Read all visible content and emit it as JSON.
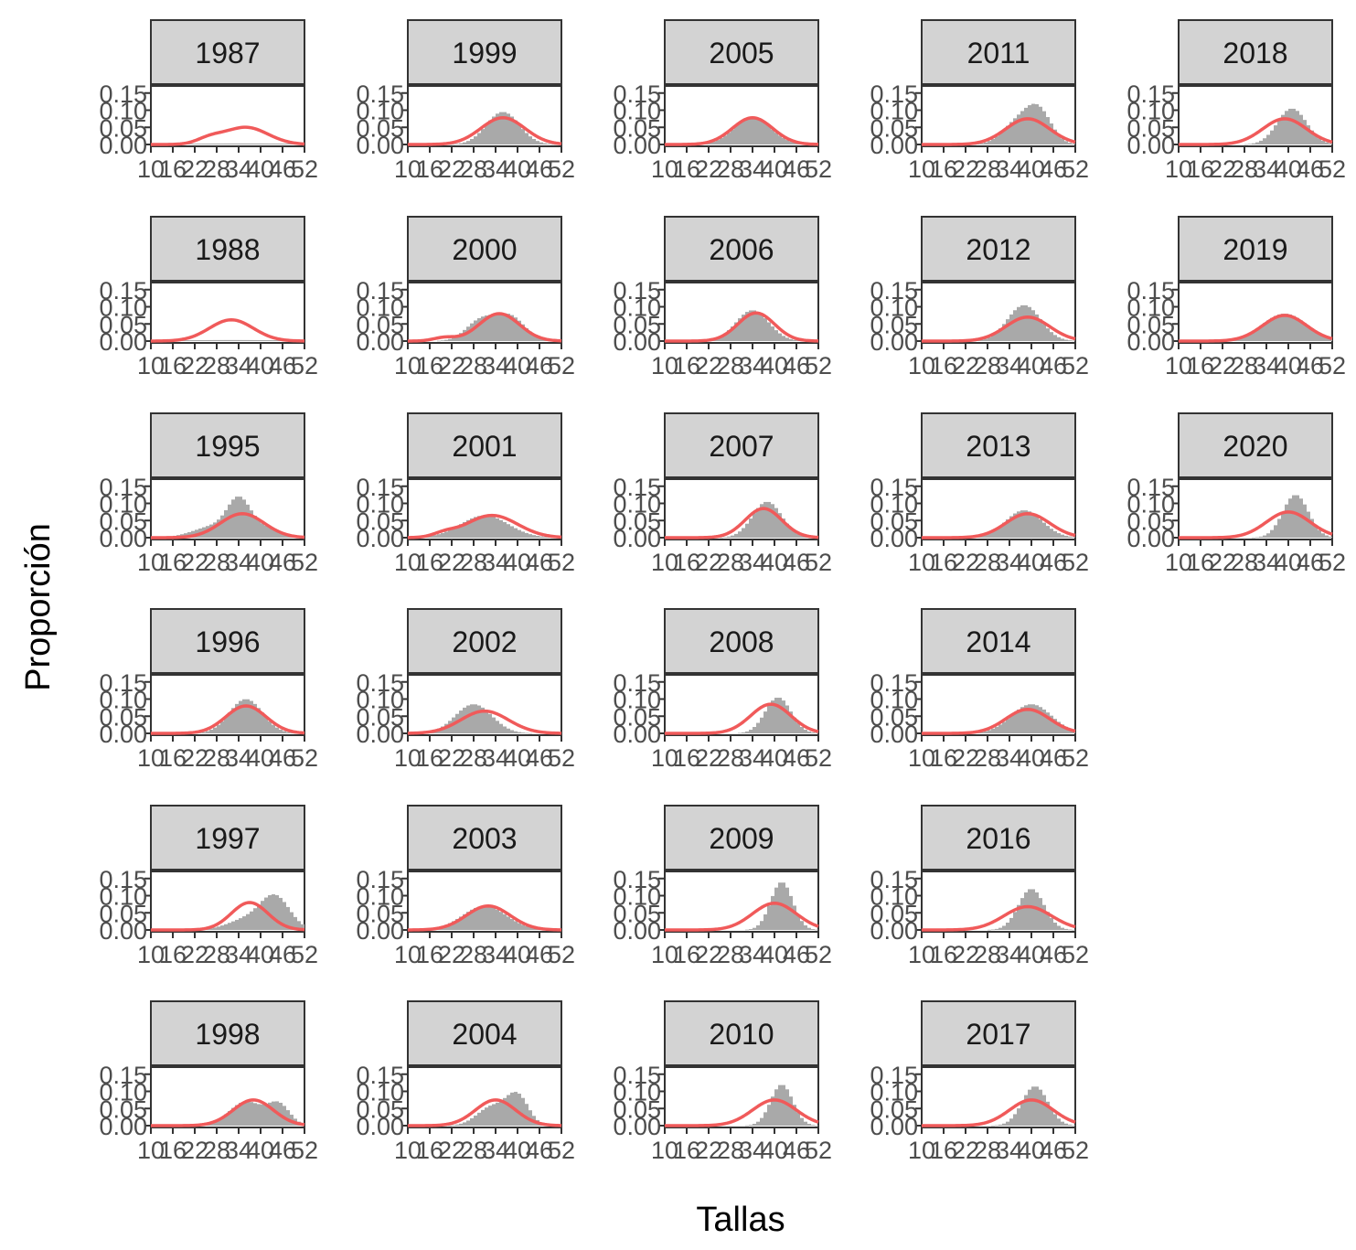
{
  "chart_data": {
    "type": "bar",
    "layout": "facet_wrap",
    "xlabel": "Tallas",
    "ylabel": "Proporción",
    "xlim": [
      10,
      52
    ],
    "ylim": [
      0,
      0.16
    ],
    "x_ticks": [
      10,
      16,
      22,
      28,
      34,
      40,
      46,
      52
    ],
    "x_tick_labels": [
      "10",
      "16",
      "22",
      "28",
      "34",
      "40",
      "46",
      "52"
    ],
    "y_ticks": [
      0,
      0.05,
      0.1,
      0.15
    ],
    "y_tick_labels": [
      "0.00",
      "0.05",
      "0.10",
      "0.15"
    ],
    "bin_width": 1,
    "observed_color": "#a9a9a9",
    "predicted_color": "#f05a5a",
    "strip_color": "#d3d3d3",
    "panels": [
      {
        "label": "1987",
        "obs_peaks": [
          [
            36,
            0.003,
            20
          ]
        ],
        "pred_peaks": [
          [
            36,
            0.05,
            6.0
          ],
          [
            26,
            0.015,
            3.5
          ]
        ]
      },
      {
        "label": "1988",
        "obs_peaks": [
          [
            32,
            0.003,
            20
          ]
        ],
        "pred_peaks": [
          [
            32,
            0.062,
            6.0
          ]
        ]
      },
      {
        "label": "1995",
        "obs_peaks": [
          [
            34,
            0.085,
            3.0
          ],
          [
            28,
            0.035,
            6.0
          ],
          [
            40,
            0.03,
            5.0
          ]
        ],
        "pred_peaks": [
          [
            35,
            0.07,
            6.0
          ]
        ]
      },
      {
        "label": "1996",
        "obs_peaks": [
          [
            36,
            0.1,
            4.5
          ]
        ],
        "pred_peaks": [
          [
            36,
            0.08,
            5.5
          ]
        ]
      },
      {
        "label": "1997",
        "obs_peaks": [
          [
            44,
            0.095,
            4.0
          ],
          [
            36,
            0.03,
            5.0
          ]
        ],
        "pred_peaks": [
          [
            37,
            0.08,
            5.0
          ]
        ]
      },
      {
        "label": "1998",
        "obs_peaks": [
          [
            36,
            0.07,
            4.5
          ],
          [
            45,
            0.06,
            3.0
          ]
        ],
        "pred_peaks": [
          [
            38,
            0.075,
            5.5
          ]
        ]
      },
      {
        "label": "1999",
        "obs_peaks": [
          [
            36,
            0.095,
            4.5
          ]
        ],
        "pred_peaks": [
          [
            36,
            0.078,
            6.0
          ]
        ]
      },
      {
        "label": "2000",
        "obs_peaks": [
          [
            30,
            0.06,
            4.0
          ],
          [
            38,
            0.07,
            4.0
          ]
        ],
        "pred_peaks": [
          [
            35,
            0.08,
            5.5
          ],
          [
            20,
            0.01,
            3.0
          ]
        ]
      },
      {
        "label": "2001",
        "obs_peaks": [
          [
            31,
            0.065,
            6.5
          ]
        ],
        "pred_peaks": [
          [
            33,
            0.065,
            7.0
          ],
          [
            20,
            0.01,
            3.0
          ]
        ]
      },
      {
        "label": "2002",
        "obs_peaks": [
          [
            28,
            0.085,
            5.0
          ]
        ],
        "pred_peaks": [
          [
            31,
            0.065,
            6.5
          ]
        ]
      },
      {
        "label": "2003",
        "obs_peaks": [
          [
            31,
            0.07,
            6.0
          ]
        ],
        "pred_peaks": [
          [
            32,
            0.07,
            6.0
          ]
        ]
      },
      {
        "label": "2004",
        "obs_peaks": [
          [
            40,
            0.085,
            3.0
          ],
          [
            33,
            0.055,
            4.0
          ]
        ],
        "pred_peaks": [
          [
            34,
            0.075,
            5.5
          ]
        ]
      },
      {
        "label": "2005",
        "obs_peaks": [
          [
            34,
            0.08,
            5.0
          ]
        ],
        "pred_peaks": [
          [
            34,
            0.078,
            5.5
          ]
        ]
      },
      {
        "label": "2006",
        "obs_peaks": [
          [
            34,
            0.09,
            4.5
          ]
        ],
        "pred_peaks": [
          [
            35,
            0.082,
            5.0
          ]
        ]
      },
      {
        "label": "2007",
        "obs_peaks": [
          [
            38,
            0.105,
            4.0
          ]
        ],
        "pred_peaks": [
          [
            37,
            0.085,
            5.0
          ]
        ]
      },
      {
        "label": "2008",
        "obs_peaks": [
          [
            41,
            0.105,
            3.5
          ]
        ],
        "pred_peaks": [
          [
            39,
            0.085,
            5.5
          ]
        ]
      },
      {
        "label": "2009",
        "obs_peaks": [
          [
            42,
            0.14,
            3.0
          ]
        ],
        "pred_peaks": [
          [
            40,
            0.078,
            6.0
          ]
        ]
      },
      {
        "label": "2010",
        "obs_peaks": [
          [
            42,
            0.12,
            3.0
          ]
        ],
        "pred_peaks": [
          [
            40,
            0.075,
            6.0
          ]
        ]
      },
      {
        "label": "2011",
        "obs_peaks": [
          [
            42,
            0.095,
            3.5
          ],
          [
            36,
            0.06,
            4.0
          ]
        ],
        "pred_peaks": [
          [
            39,
            0.075,
            6.0
          ]
        ]
      },
      {
        "label": "2012",
        "obs_peaks": [
          [
            38,
            0.105,
            4.5
          ]
        ],
        "pred_peaks": [
          [
            39,
            0.07,
            6.0
          ]
        ]
      },
      {
        "label": "2013",
        "obs_peaks": [
          [
            38,
            0.08,
            5.0
          ]
        ],
        "pred_peaks": [
          [
            39,
            0.07,
            6.0
          ]
        ]
      },
      {
        "label": "2014",
        "obs_peaks": [
          [
            40,
            0.085,
            5.5
          ]
        ],
        "pred_peaks": [
          [
            39,
            0.07,
            6.0
          ]
        ]
      },
      {
        "label": "2016",
        "obs_peaks": [
          [
            40,
            0.12,
            3.5
          ]
        ],
        "pred_peaks": [
          [
            39,
            0.068,
            6.5
          ]
        ]
      },
      {
        "label": "2017",
        "obs_peaks": [
          [
            41,
            0.115,
            3.5
          ]
        ],
        "pred_peaks": [
          [
            40,
            0.075,
            6.0
          ]
        ]
      },
      {
        "label": "2018",
        "obs_peaks": [
          [
            41,
            0.105,
            4.0
          ]
        ],
        "pred_peaks": [
          [
            39,
            0.075,
            6.0
          ]
        ]
      },
      {
        "label": "2019",
        "obs_peaks": [
          [
            39,
            0.08,
            6.0
          ]
        ],
        "pred_peaks": [
          [
            39,
            0.075,
            6.0
          ]
        ]
      },
      {
        "label": "2020",
        "obs_peaks": [
          [
            42,
            0.125,
            3.5
          ]
        ],
        "pred_peaks": [
          [
            40,
            0.075,
            6.0
          ]
        ]
      }
    ]
  }
}
